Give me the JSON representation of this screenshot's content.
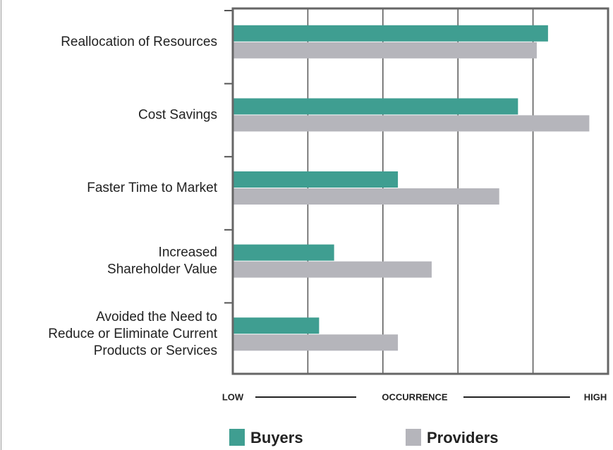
{
  "chart_data": {
    "type": "bar",
    "orientation": "horizontal",
    "categories": [
      [
        "Reallocation of Resources"
      ],
      [
        "Cost Savings"
      ],
      [
        "Faster Time to Market"
      ],
      [
        "Increased",
        "Shareholder Value"
      ],
      [
        "Avoided the Need to",
        "Reduce or Eliminate Current",
        "Products or Services"
      ]
    ],
    "series": [
      {
        "name": "Buyers",
        "color": "#3f9e91",
        "values": [
          84,
          76,
          44,
          27,
          23
        ]
      },
      {
        "name": "Providers",
        "color": "#b5b5bb",
        "values": [
          81,
          95,
          71,
          53,
          44
        ]
      }
    ],
    "xlim": [
      0,
      100
    ],
    "xticks": [
      20,
      40,
      60,
      80
    ],
    "grid": true,
    "x_axis": {
      "low": "LOW",
      "title": "OCCURRENCE",
      "high": "HIGH"
    }
  }
}
